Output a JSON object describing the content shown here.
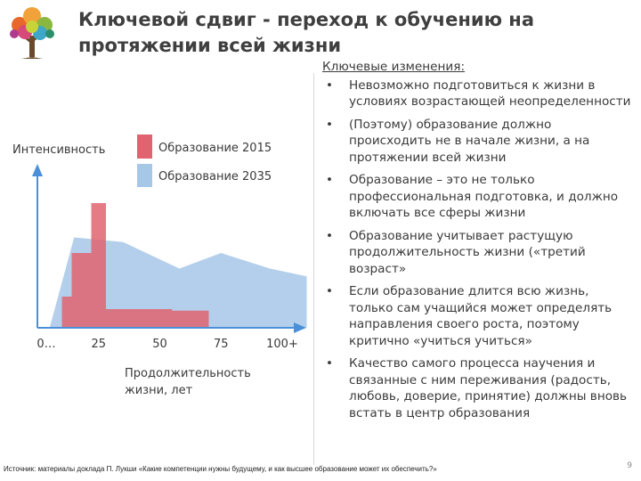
{
  "title": "Ключевой сдвиг - переход к обучению на протяжении всей жизни",
  "chart_data": {
    "type": "area",
    "ylabel": "Интенсивность",
    "xlabel": "Продолжительность жизни, лет",
    "x_ticks": [
      "0…",
      "25",
      "50",
      "75",
      "100+"
    ],
    "legend_position": "top",
    "series": [
      {
        "name": "Образование 2015",
        "color": "#e06470",
        "x": [
          5,
          10,
          14,
          17,
          22,
          28,
          38,
          55,
          70
        ],
        "values": [
          0,
          20,
          48,
          48,
          80,
          12,
          12,
          11,
          0
        ]
      },
      {
        "name": "Образование 2035",
        "color": "#a7c7e7",
        "x": [
          5,
          15,
          35,
          58,
          75,
          95,
          110
        ],
        "values": [
          0,
          58,
          55,
          38,
          48,
          38,
          33
        ]
      }
    ]
  },
  "changes": {
    "heading": "Ключевые изменения",
    "heading_colon": ":",
    "bullet_glyph": "•",
    "items": [
      "Невозможно подготовиться к жизни в условиях возрастающей неопределенности",
      "(Поэтому) образование должно происходить не в начале жизни, а на протяжении всей жизни",
      "Образование – это не только профессиональная подготовка, и должно включать все сферы жизни",
      "Образование учитывает растущую продолжительность жизни («третий возраст»",
      "Если образование длится всю жизнь, только сам учащийся может определять направления своего роста, поэтому критично «учиться учиться»",
      "Качество самого процесса научения и связанные с ним переживания (радость, любовь, доверие, принятие) должны вновь встать в центр образования"
    ]
  },
  "source": "Источник: материалы доклада П. Лукши «Какие компетенции нужны будущему, и как высшее образование может их обеспечить?»",
  "page_number": "9"
}
